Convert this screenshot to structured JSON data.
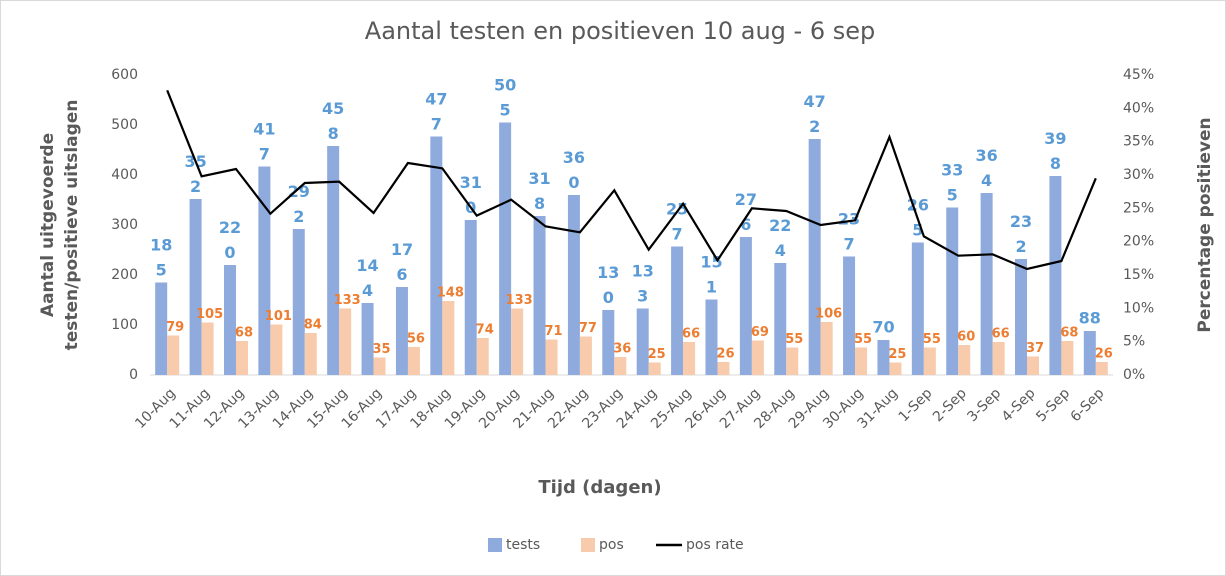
{
  "chart_data": {
    "type": "bar",
    "title": "Aantal testen en positieven 10 aug - 6 sep",
    "xlabel": "Tijd (dagen)",
    "ylabel": [
      "Aantal uitgevoerde",
      "testen/positieve uitslagen"
    ],
    "y2label": "Percentage positieven",
    "categories": [
      "10-Aug",
      "11-Aug",
      "12-Aug",
      "13-Aug",
      "14-Aug",
      "15-Aug",
      "16-Aug",
      "17-Aug",
      "18-Aug",
      "19-Aug",
      "20-Aug",
      "21-Aug",
      "22-Aug",
      "23-Aug",
      "24-Aug",
      "25-Aug",
      "26-Aug",
      "27-Aug",
      "28-Aug",
      "29-Aug",
      "30-Aug",
      "31-Aug",
      "1-Sep",
      "2-Sep",
      "3-Sep",
      "4-Sep",
      "5-Sep",
      "6-Sep"
    ],
    "series": [
      {
        "name": "tests",
        "color": "#8faadc",
        "label_color": "#5b9bd5",
        "values": [
          185,
          352,
          220,
          417,
          292,
          458,
          144,
          176,
          477,
          310,
          505,
          318,
          360,
          130,
          133,
          257,
          151,
          276,
          224,
          472,
          237,
          70,
          265,
          335,
          364,
          232,
          398,
          88
        ]
      },
      {
        "name": "pos",
        "color": "#f8cbad",
        "label_color": "#ed7d31",
        "values": [
          79,
          105,
          68,
          101,
          84,
          133,
          35,
          56,
          148,
          74,
          133,
          71,
          77,
          36,
          25,
          66,
          26,
          69,
          55,
          106,
          55,
          25,
          55,
          60,
          66,
          37,
          68,
          26
        ]
      },
      {
        "name": "pos rate",
        "type": "line",
        "axis": "y2",
        "color": "#000000",
        "values": [
          42.7,
          29.8,
          30.9,
          24.2,
          28.8,
          29.0,
          24.3,
          31.8,
          31.0,
          23.9,
          26.3,
          22.3,
          21.4,
          27.7,
          18.8,
          25.7,
          17.2,
          25.0,
          24.6,
          22.5,
          23.2,
          35.7,
          20.8,
          17.9,
          18.1,
          15.9,
          17.1,
          29.5
        ]
      }
    ],
    "ylim": [
      0,
      600
    ],
    "yticks": [
      0,
      100,
      200,
      300,
      400,
      500,
      600
    ],
    "y2lim": [
      0,
      45
    ],
    "y2ticks": [
      {
        "value": 0,
        "label": "0%"
      },
      {
        "value": 5,
        "label": "5%"
      },
      {
        "value": 10,
        "label": "10%"
      },
      {
        "value": 15,
        "label": "15%"
      },
      {
        "value": 20,
        "label": "20%"
      },
      {
        "value": 25,
        "label": "25%"
      },
      {
        "value": 30,
        "label": "30%"
      },
      {
        "value": 35,
        "label": "35%"
      },
      {
        "value": 40,
        "label": "40%"
      },
      {
        "value": 45,
        "label": "45%"
      }
    ],
    "legend": "bottom",
    "grid": false
  }
}
